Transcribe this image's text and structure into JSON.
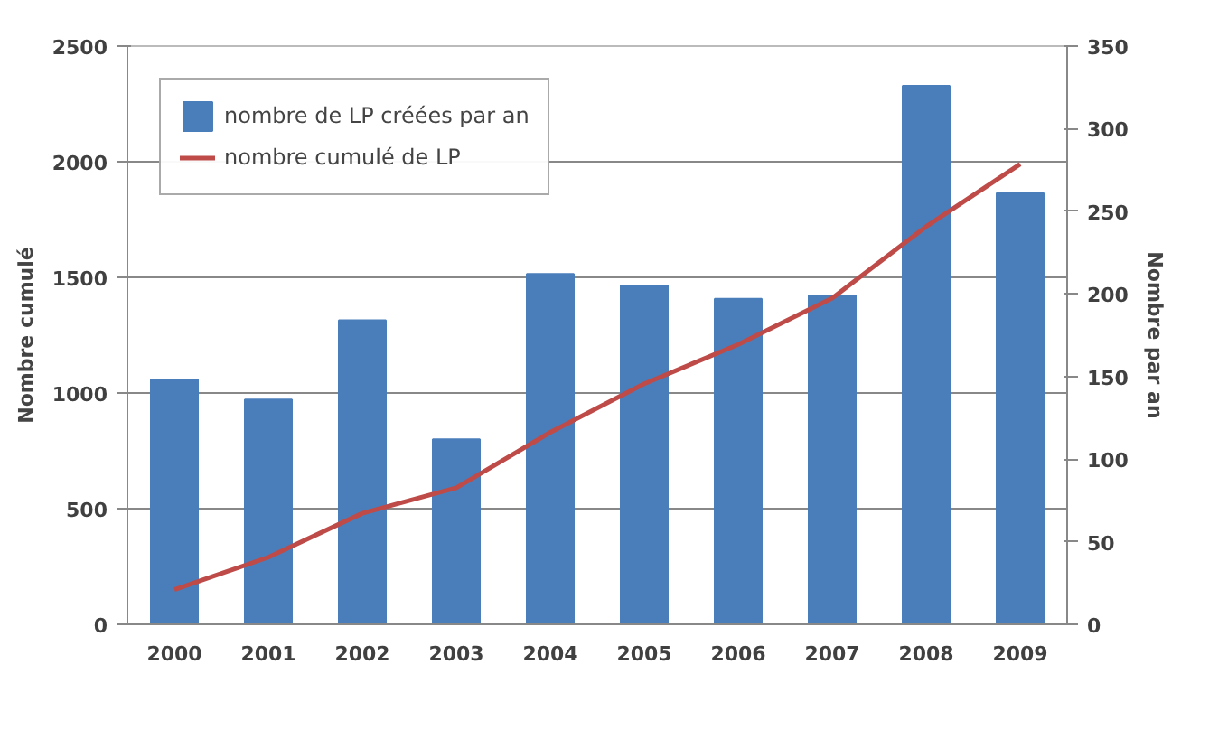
{
  "chart_data": {
    "type": "bar",
    "categories": [
      "2000",
      "2001",
      "2002",
      "2003",
      "2004",
      "2005",
      "2006",
      "2007",
      "2008",
      "2009"
    ],
    "series": [
      {
        "name": "nombre de LP créées par an",
        "color": "#4a7ebb",
        "axis": "y2",
        "values": [
          148,
          136,
          184,
          112,
          212,
          205,
          197,
          199,
          326,
          261
        ]
      },
      {
        "name": "nombre cumulé de LP",
        "type": "line",
        "color": "#be4b48",
        "values": [
          150,
          290,
          480,
          590,
          830,
          1040,
          1210,
          1410,
          1720,
          1990
        ]
      }
    ],
    "ylabel": "Nombre cumulé",
    "y2label": "Nombre par an",
    "ylim": [
      0,
      2500
    ],
    "yticks": [
      0,
      500,
      1000,
      1500,
      2000,
      2500
    ],
    "y2lim": [
      0,
      350
    ],
    "y2ticks": [
      0,
      50,
      100,
      150,
      200,
      250,
      300,
      350
    ],
    "grid": "y",
    "legend": "top left"
  }
}
